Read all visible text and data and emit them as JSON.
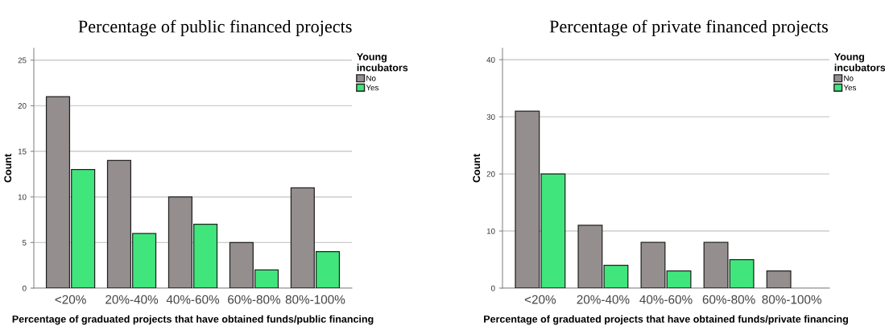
{
  "chart_data": [
    {
      "type": "bar",
      "title": "Percentage of public financed projects",
      "xlabel": "Percentage of graduated projects that have obtained funds/public financing",
      "ylabel": "Count",
      "legend_title": "Young incubators",
      "categories": [
        "<20%",
        "20%-40%",
        "40%-60%",
        "60%-80%",
        "80%-100%"
      ],
      "series": [
        {
          "name": "No",
          "color": "#948f8e",
          "values": [
            21,
            14,
            10,
            5,
            11
          ]
        },
        {
          "name": "Yes",
          "color": "#40e67c",
          "values": [
            13,
            6,
            7,
            2,
            4
          ]
        }
      ],
      "ylim": [
        0,
        26.3
      ],
      "yticks": [
        0,
        5,
        10,
        15,
        20,
        25
      ],
      "grid": "y",
      "legend": "top right"
    },
    {
      "type": "bar",
      "title": "Percentage of private financed projects",
      "xlabel": "Percentage of graduated projects that have obtained funds/private financing",
      "ylabel": "Count",
      "legend_title": "Young incubators",
      "categories": [
        "<20%",
        "20%-40%",
        "40%-60%",
        "60%-80%",
        "80%-100%"
      ],
      "series": [
        {
          "name": "No",
          "color": "#948f8e",
          "values": [
            31,
            11,
            8,
            8,
            3
          ]
        },
        {
          "name": "Yes",
          "color": "#40e67c",
          "values": [
            20,
            4,
            3,
            5,
            null
          ]
        }
      ],
      "ylim": [
        0,
        42
      ],
      "yticks": [
        0,
        10,
        20,
        30,
        40
      ],
      "grid": "y",
      "legend": "top right"
    }
  ]
}
